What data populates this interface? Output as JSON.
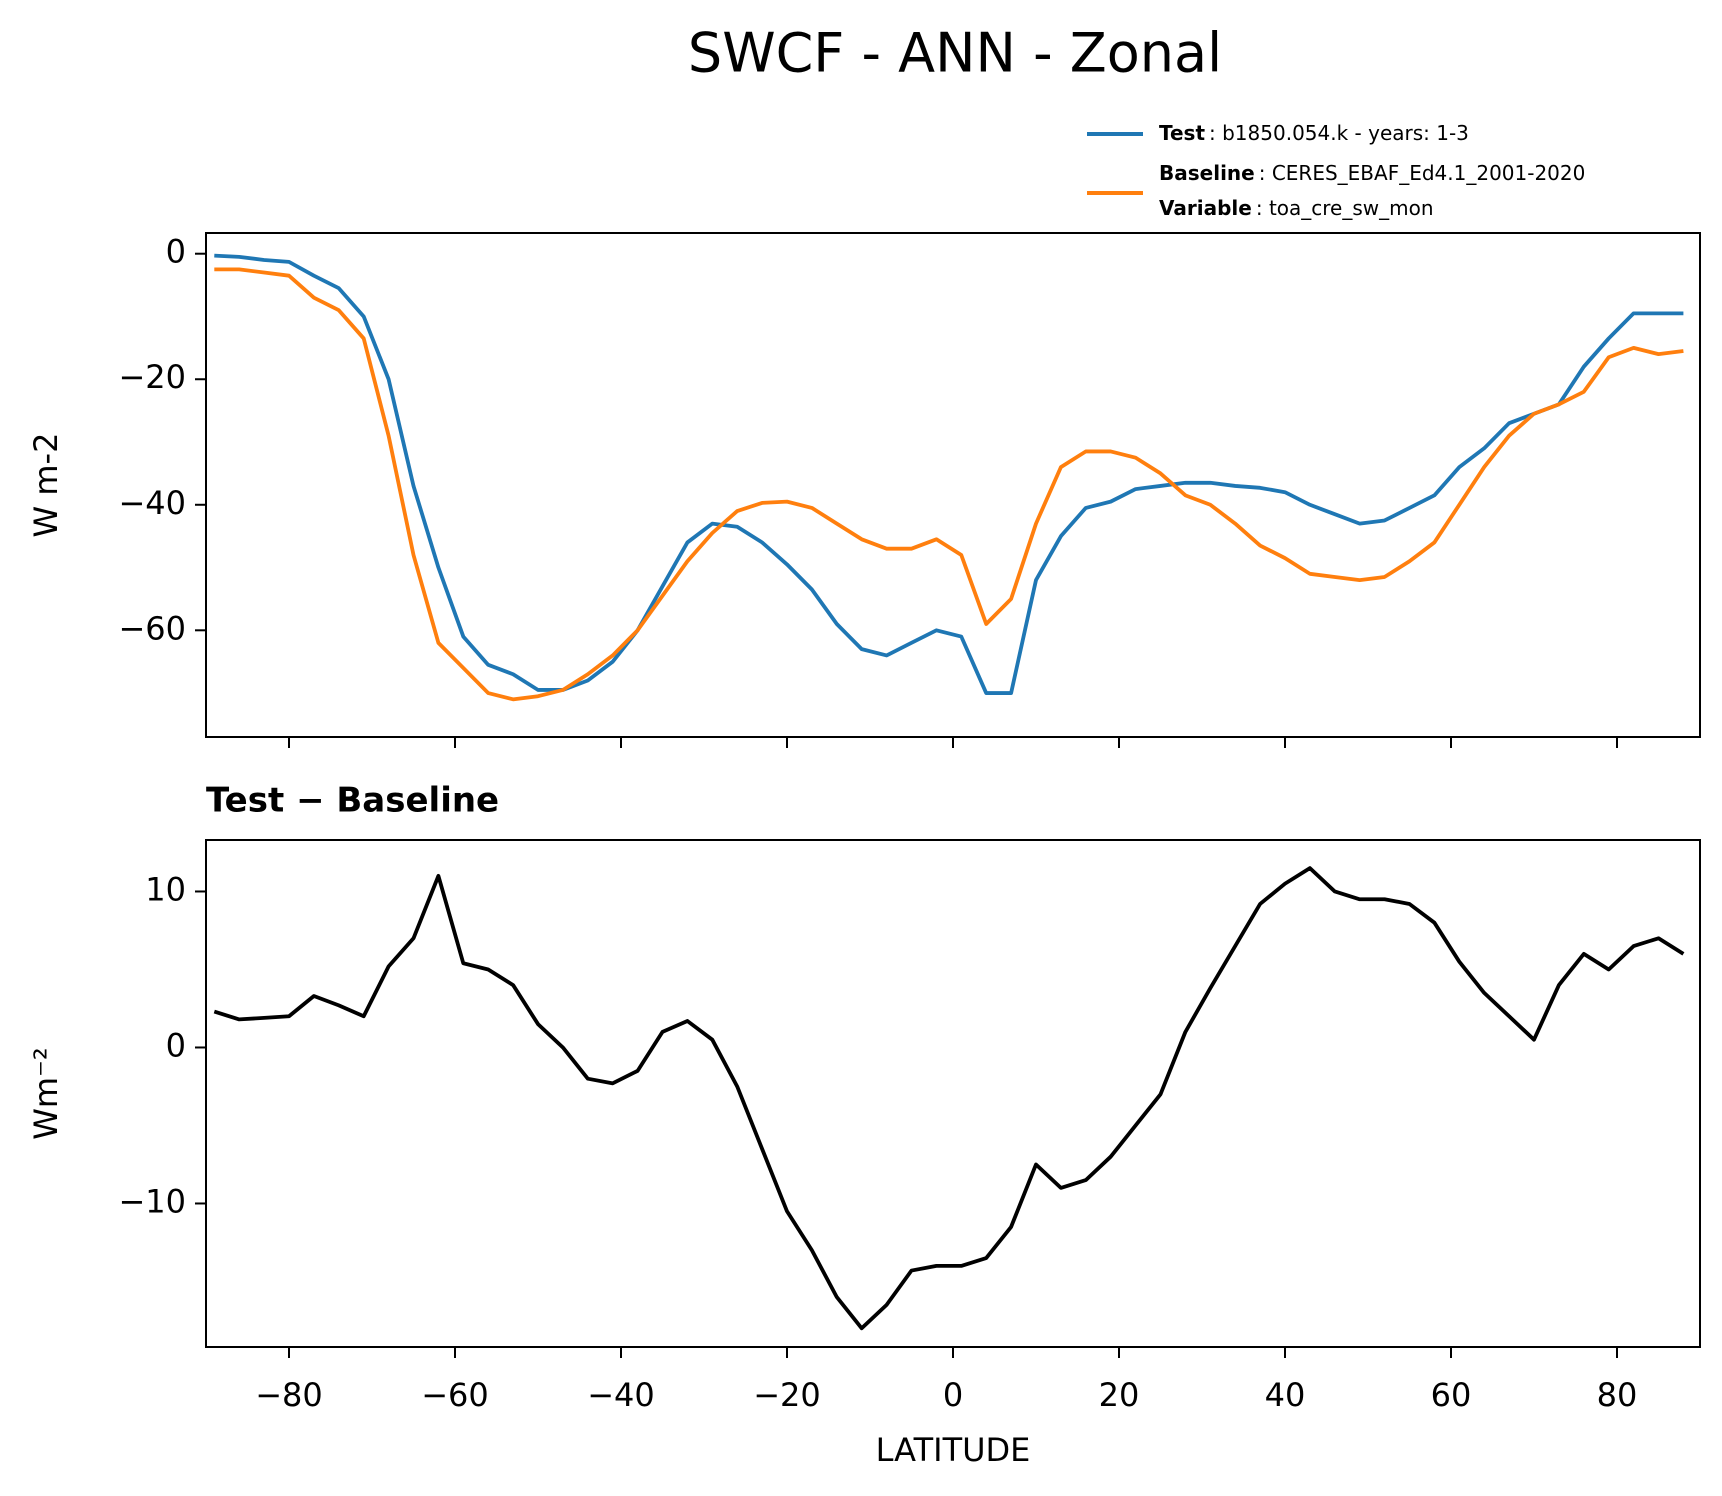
{
  "title": "SWCF - ANN - Zonal",
  "chart_data": [
    {
      "type": "line",
      "ylabel": "W m-2",
      "x": [
        -89,
        -86,
        -83,
        -80,
        -77,
        -74,
        -71,
        -68,
        -65,
        -62,
        -59,
        -56,
        -53,
        -50,
        -47,
        -44,
        -41,
        -38,
        -35,
        -32,
        -29,
        -26,
        -23,
        -20,
        -17,
        -14,
        -11,
        -8,
        -5,
        -2,
        1,
        4,
        7,
        10,
        13,
        16,
        19,
        22,
        25,
        28,
        31,
        34,
        37,
        40,
        43,
        46,
        49,
        52,
        55,
        58,
        61,
        64,
        67,
        70,
        73,
        76,
        79,
        82,
        85,
        88
      ],
      "series": [
        {
          "name": "Test",
          "label": ": b1850.054.k - years: 1-3",
          "color": "#1f77b4",
          "values": [
            -0.3,
            -0.5,
            -1.0,
            -1.3,
            -3.5,
            -5.5,
            -10,
            -20,
            -37,
            -50,
            -61,
            -65.5,
            -67,
            -69.5,
            -69.5,
            -68,
            -65,
            -60,
            -53,
            -46,
            -43,
            -43.5,
            -46,
            -49.5,
            -53.5,
            -59,
            -63,
            -64,
            -62,
            -60,
            -61,
            -70,
            -70,
            -52,
            -45,
            -40.5,
            -39.5,
            -37.5,
            -37,
            -36.5,
            -36.5,
            -37,
            -37.3,
            -38,
            -40,
            -41.5,
            -43,
            -42.5,
            -40.5,
            -38.5,
            -34,
            -31,
            -27,
            -25.5,
            -24,
            -18,
            -13.5,
            -9.5,
            -9.5,
            -9.5
          ]
        },
        {
          "name": "Baseline",
          "label": ": CERES_EBAF_Ed4.1_2001-2020",
          "color": "#ff7f0e",
          "values": [
            -2.5,
            -2.5,
            -3,
            -3.5,
            -7,
            -9,
            -13.5,
            -29,
            -48,
            -62,
            -66,
            -70,
            -71,
            -70.5,
            -69.5,
            -67,
            -64,
            -60,
            -54.5,
            -49,
            -44.5,
            -41,
            -39.7,
            -39.5,
            -40.5,
            -43,
            -45.5,
            -47,
            -47,
            -45.5,
            -48,
            -59,
            -55,
            -43,
            -34,
            -31.5,
            -31.5,
            -32.5,
            -35,
            -38.5,
            -40,
            -43,
            -46.5,
            -48.5,
            -51,
            -51.5,
            -52,
            -51.5,
            -49,
            -46,
            -40,
            -34,
            -29,
            -25.5,
            -24,
            -22,
            -16.5,
            -15,
            -16,
            -15.5
          ]
        }
      ],
      "legend_note": {
        "name": "Variable",
        "label": ": toa_cre_sw_mon"
      },
      "xlim": [
        -90,
        90
      ],
      "xticks": [
        -80,
        -60,
        -40,
        -20,
        0,
        20,
        40,
        60,
        80
      ],
      "ylim": [
        -77,
        3.3
      ],
      "yticks": [
        0,
        -20,
        -40,
        -60
      ]
    },
    {
      "type": "line",
      "title": "Test − Baseline",
      "xlabel": "LATITUDE",
      "ylabel": "Wm⁻²",
      "x": [
        -89,
        -86,
        -83,
        -80,
        -77,
        -74,
        -71,
        -68,
        -65,
        -62,
        -59,
        -56,
        -53,
        -50,
        -47,
        -44,
        -41,
        -38,
        -35,
        -32,
        -29,
        -26,
        -23,
        -20,
        -17,
        -14,
        -11,
        -8,
        -5,
        -2,
        1,
        4,
        7,
        10,
        13,
        16,
        19,
        22,
        25,
        28,
        31,
        34,
        37,
        40,
        43,
        46,
        49,
        52,
        55,
        58,
        61,
        64,
        67,
        70,
        73,
        76,
        79,
        82,
        85,
        88
      ],
      "series": [
        {
          "color": "#000000",
          "values": [
            2.3,
            1.8,
            1.9,
            2.0,
            3.3,
            2.7,
            2.0,
            5.2,
            7.0,
            11.0,
            5.4,
            5.0,
            4.0,
            1.5,
            0,
            -2.0,
            -2.3,
            -1.5,
            1.0,
            1.7,
            0.5,
            -2.5,
            -6.5,
            -10.5,
            -13,
            -16,
            -18,
            -16.5,
            -14.3,
            -14,
            -14,
            -13.5,
            -11.5,
            -7.5,
            -9,
            -8.5,
            -7,
            -5,
            -3,
            1,
            3.8,
            6.5,
            9.2,
            10.5,
            11.5,
            10,
            9.5,
            9.5,
            9.2,
            8,
            5.5,
            3.5,
            2.0,
            0.5,
            4.0,
            6.0,
            5.0,
            6.5,
            7.0,
            6.0
          ]
        }
      ],
      "xlim": [
        -90,
        90
      ],
      "xticks": [
        -80,
        -60,
        -40,
        -20,
        0,
        20,
        40,
        60,
        80
      ],
      "ylim": [
        -19.2,
        13.3
      ],
      "yticks": [
        10,
        0,
        -10
      ]
    }
  ]
}
